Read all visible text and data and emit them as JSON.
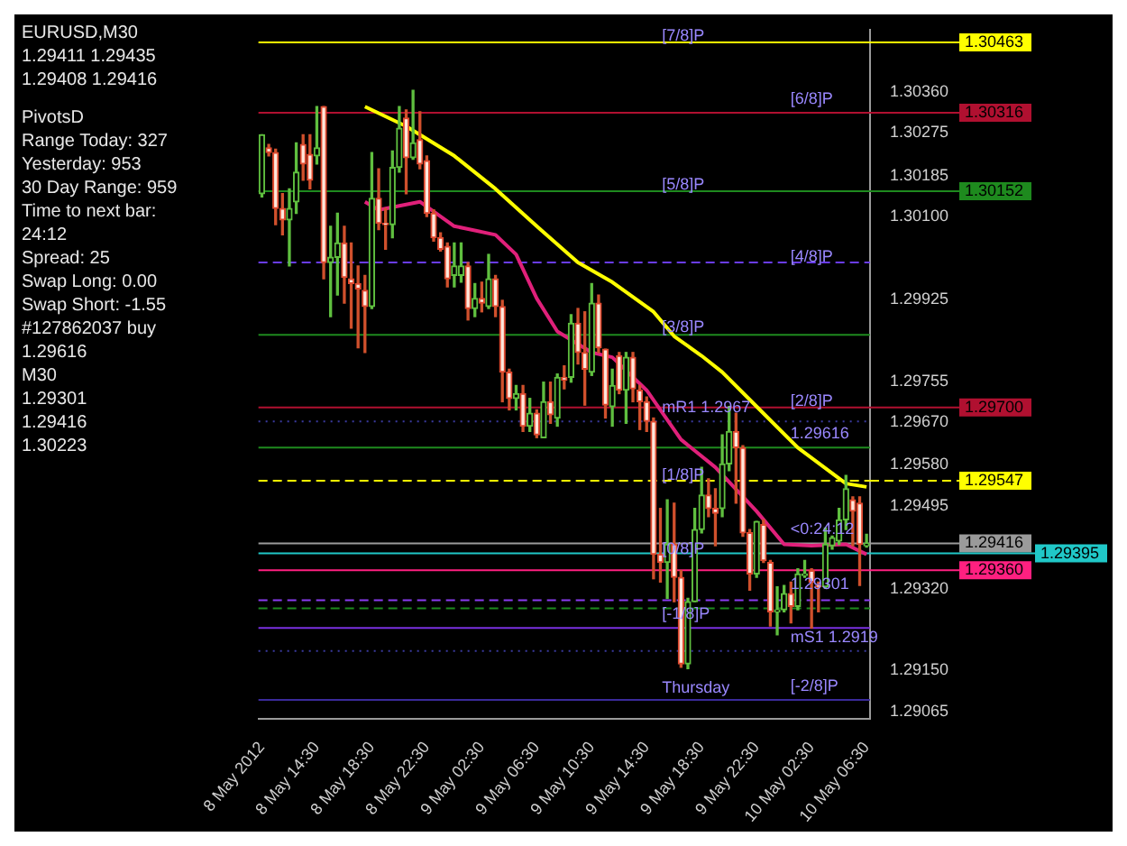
{
  "chart_data": {
    "type": "candlestick",
    "title": "EURUSD,M30  1.29411 1.29435 1.29408 1.29416",
    "categories": [
      "8 May 2012",
      null,
      null,
      null,
      null,
      null,
      null,
      null,
      "8 May 14:30",
      null,
      null,
      null,
      null,
      null,
      null,
      null,
      "8 May 18:30",
      null,
      null,
      null,
      null,
      null,
      null,
      null,
      "8 May 22:30",
      null,
      null,
      null,
      null,
      null,
      null,
      null,
      "9 May 02:30",
      null,
      null,
      null,
      null,
      null,
      null,
      null,
      "9 May 06:30",
      null,
      null,
      null,
      null,
      null,
      null,
      null,
      "9 May 10:30",
      null,
      null,
      null,
      null,
      null,
      null,
      null,
      "9 May 14:30",
      null,
      null,
      null,
      null,
      null,
      null,
      null,
      "9 May 18:30",
      null,
      null,
      null,
      null,
      null,
      null,
      null,
      "9 May 22:30",
      null,
      null,
      null,
      null,
      null,
      null,
      null,
      "10 May 02:30",
      null,
      null,
      null,
      null,
      null,
      null,
      null,
      "10 May 06:30"
    ],
    "ohlc": [
      [
        1.30147,
        1.3027,
        1.3014,
        1.3027
      ],
      [
        1.30243,
        1.3025,
        1.30226,
        1.30233
      ],
      [
        1.30233,
        1.3024,
        1.30082,
        1.30116
      ],
      [
        1.30116,
        1.30147,
        1.30061,
        1.30092
      ],
      [
        1.30092,
        1.30157,
        1.29996,
        1.30116
      ],
      [
        1.3013,
        1.30253,
        1.30106,
        1.30192
      ],
      [
        1.3025,
        1.3027,
        1.30175,
        1.30209
      ],
      [
        1.30229,
        1.3027,
        1.30157,
        1.30175
      ],
      [
        1.30226,
        1.30329,
        1.30209,
        1.30243
      ],
      [
        1.30329,
        1.30329,
        1.29969,
        1.30003
      ],
      [
        1.30003,
        1.30079,
        1.2989,
        1.30014
      ],
      [
        1.30014,
        1.30106,
        1.29935,
        1.30044
      ],
      [
        1.30044,
        1.30079,
        1.29918,
        1.29972
      ],
      [
        1.29969,
        1.30044,
        1.29866,
        1.29959
      ],
      [
        1.29959,
        1.29996,
        1.29825,
        1.29948
      ],
      [
        1.29945,
        1.29976,
        1.29815,
        1.29911
      ],
      [
        1.29911,
        1.30233,
        1.29907,
        1.30137
      ],
      [
        1.30137,
        1.30199,
        1.30072,
        1.30085
      ],
      [
        1.30085,
        1.30116,
        1.30031,
        1.30082
      ],
      [
        1.30082,
        1.30236,
        1.30055,
        1.30202
      ],
      [
        1.30202,
        1.30329,
        1.30192,
        1.30284
      ],
      [
        1.30305,
        1.30322,
        1.30147,
        1.30222
      ],
      [
        1.30222,
        1.30363,
        1.30219,
        1.30253
      ],
      [
        1.3026,
        1.30318,
        1.30199,
        1.30209
      ],
      [
        1.30216,
        1.30226,
        1.30099,
        1.30106
      ],
      [
        1.30106,
        1.30113,
        1.30048,
        1.30055
      ],
      [
        1.30055,
        1.30065,
        1.30027,
        1.30031
      ],
      [
        1.30037,
        1.30044,
        1.29952,
        1.29969
      ],
      [
        1.29976,
        1.30044,
        1.29952,
        1.29996
      ],
      [
        1.29976,
        1.30044,
        1.29962,
        1.29996
      ],
      [
        1.29996,
        1.30003,
        1.29883,
        1.29907
      ],
      [
        1.29907,
        1.29959,
        1.2989,
        1.29928
      ],
      [
        1.29928,
        1.29962,
        1.299,
        1.29918
      ],
      [
        1.29911,
        1.3002,
        1.29907,
        1.29969
      ],
      [
        1.29969,
        1.29976,
        1.2989,
        1.29911
      ],
      [
        1.29911,
        1.29924,
        1.29712,
        1.29774
      ],
      [
        1.29774,
        1.2978,
        1.29695,
        1.29719
      ],
      [
        1.29719,
        1.29746,
        1.29695,
        1.29729
      ],
      [
        1.29729,
        1.29746,
        1.2965,
        1.29661
      ],
      [
        1.29661,
        1.29719,
        1.2965,
        1.29688
      ],
      [
        1.29688,
        1.29695,
        1.29637,
        1.29643
      ],
      [
        1.29637,
        1.29753,
        1.29637,
        1.29712
      ],
      [
        1.29712,
        1.29753,
        1.29667,
        1.29685
      ],
      [
        1.29678,
        1.2977,
        1.29661,
        1.29763
      ],
      [
        1.29763,
        1.29787,
        1.29739,
        1.29757
      ],
      [
        1.29763,
        1.29894,
        1.29753,
        1.29876
      ],
      [
        1.29876,
        1.29907,
        1.29791,
        1.29815
      ],
      [
        1.29815,
        1.299,
        1.29705,
        1.2978
      ],
      [
        1.29774,
        1.29959,
        1.29767,
        1.29918
      ],
      [
        1.29918,
        1.29935,
        1.29815,
        1.29825
      ],
      [
        1.29822,
        1.29822,
        1.29678,
        1.29705
      ],
      [
        1.29702,
        1.2978,
        1.29661,
        1.29746
      ],
      [
        1.29808,
        1.29815,
        1.29729,
        1.29736
      ],
      [
        1.29736,
        1.29815,
        1.29667,
        1.29805
      ],
      [
        1.29805,
        1.29815,
        1.29712,
        1.29739
      ],
      [
        1.29736,
        1.29746,
        1.29654,
        1.29712
      ],
      [
        1.29712,
        1.29722,
        1.2965,
        1.29671
      ],
      [
        1.29671,
        1.29678,
        1.29342,
        1.29393
      ],
      [
        1.29393,
        1.29489,
        1.29335,
        1.29376
      ],
      [
        1.29376,
        1.29507,
        1.29301,
        1.29414
      ],
      [
        1.29414,
        1.295,
        1.29294,
        1.29345
      ],
      [
        1.29345,
        1.29359,
        1.29157,
        1.29164
      ],
      [
        1.29164,
        1.29301,
        1.29154,
        1.29294
      ],
      [
        1.29294,
        1.29489,
        1.29294,
        1.29445
      ],
      [
        1.29445,
        1.29575,
        1.29438,
        1.29517
      ],
      [
        1.29517,
        1.29551,
        1.29472,
        1.29489
      ],
      [
        1.29489,
        1.2953,
        1.29411,
        1.29479
      ],
      [
        1.29489,
        1.29643,
        1.29472,
        1.29582
      ],
      [
        1.29582,
        1.29702,
        1.29568,
        1.2965
      ],
      [
        1.2965,
        1.29688,
        1.295,
        1.29616
      ],
      [
        1.29616,
        1.2962,
        1.29431,
        1.29438
      ],
      [
        1.29438,
        1.29445,
        1.29318,
        1.29352
      ],
      [
        1.29352,
        1.29462,
        1.29345,
        1.29462
      ],
      [
        1.29455,
        1.29465,
        1.29376,
        1.2938
      ],
      [
        1.29376,
        1.2938,
        1.29243,
        1.29273
      ],
      [
        1.29273,
        1.29325,
        1.29225,
        1.29277
      ],
      [
        1.29277,
        1.29328,
        1.29273,
        1.29311
      ],
      [
        1.29311,
        1.29335,
        1.2925,
        1.29284
      ],
      [
        1.29284,
        1.29363,
        1.29277,
        1.29352
      ],
      [
        1.29349,
        1.2938,
        1.29345,
        1.29352
      ],
      [
        1.29359,
        1.29363,
        1.29239,
        1.29335
      ],
      [
        1.29328,
        1.29335,
        1.29273,
        1.29325
      ],
      [
        1.29325,
        1.29448,
        1.29322,
        1.29414
      ],
      [
        1.29411,
        1.29431,
        1.29404,
        1.29428
      ],
      [
        1.29421,
        1.29489,
        1.29414,
        1.29465
      ],
      [
        1.29465,
        1.29558,
        1.29445,
        1.2953
      ],
      [
        1.29507,
        1.29513,
        1.29411,
        1.29483
      ],
      [
        1.295,
        1.29513,
        1.29328,
        1.29414
      ],
      [
        1.29411,
        1.29435,
        1.29408,
        1.29416
      ]
    ],
    "series": [
      {
        "type": "line",
        "color": "#ffff00",
        "values": [
          null,
          null,
          null,
          null,
          null,
          null,
          null,
          null,
          null,
          null,
          null,
          null,
          null,
          null,
          null,
          1.30329,
          null,
          null,
          null,
          null,
          null,
          1.30288,
          null,
          null,
          null,
          null,
          null,
          null,
          1.30226,
          null,
          null,
          null,
          null,
          null,
          1.30157,
          null,
          null,
          null,
          null,
          null,
          1.30079,
          null,
          null,
          null,
          null,
          null,
          1.30003,
          null,
          null,
          null,
          null,
          1.29962,
          null,
          null,
          null,
          null,
          null,
          1.299,
          null,
          null,
          1.29849,
          null,
          null,
          null,
          1.29808,
          null,
          null,
          1.29774,
          null,
          null,
          null,
          null,
          1.29702,
          null,
          null,
          null,
          null,
          null,
          1.29616,
          null,
          null,
          null,
          null,
          null,
          null,
          1.29541,
          null,
          null,
          1.29534
        ]
      },
      {
        "type": "line",
        "color": "#e0207a",
        "values": [
          null,
          null,
          null,
          null,
          null,
          null,
          null,
          null,
          null,
          null,
          null,
          null,
          null,
          null,
          null,
          1.3013,
          null,
          1.30113,
          null,
          null,
          null,
          null,
          null,
          1.3013,
          null,
          null,
          null,
          null,
          1.30079,
          null,
          null,
          null,
          null,
          null,
          1.30061,
          null,
          null,
          1.3002,
          null,
          null,
          1.29928,
          null,
          null,
          1.29859,
          null,
          null,
          null,
          null,
          1.29815,
          null,
          null,
          1.29805,
          null,
          null,
          null,
          null,
          1.29736,
          null,
          null,
          null,
          null,
          1.29633,
          null,
          null,
          null,
          null,
          1.29575,
          null,
          null,
          null,
          null,
          null,
          1.29483,
          null,
          null,
          null,
          1.29414,
          null,
          null,
          null,
          1.29411,
          null,
          null,
          null,
          null,
          1.29414,
          null,
          null,
          1.29393
        ]
      }
    ],
    "ylim": [
      1.2905,
      1.3049
    ],
    "yticks": [
      1.29065,
      {
        "value": 1.2915,
        "label": "1.29150"
      },
      {
        "value": 1.2932,
        "label": "1.29320"
      },
      1.29495,
      {
        "value": 1.2958,
        "label": "1.29580"
      },
      {
        "value": 1.2967,
        "label": "1.29670"
      },
      1.29755,
      1.29925,
      {
        "value": 1.301,
        "label": "1.30100"
      },
      1.30185,
      1.30275,
      {
        "value": 1.3036,
        "label": "1.30360"
      }
    ],
    "ref_lines": [
      {
        "axis": "y",
        "value": 1.30463,
        "label": "1.30463",
        "color": "#ffff00",
        "line_style": "solid"
      },
      {
        "axis": "y",
        "value": 1.30316,
        "label": "1.30316",
        "color": "#b01030",
        "line_style": "solid"
      },
      {
        "axis": "y",
        "value": 1.30152,
        "label": "1.30152",
        "color": "#1e8a1e",
        "line_style": "solid"
      },
      {
        "axis": "y",
        "value": 1.30003,
        "color": "#6a3cf0",
        "line_style": "dashed"
      },
      {
        "axis": "y",
        "value": 1.29852,
        "color": "#1e8a1e",
        "line_style": "solid"
      },
      {
        "axis": "y",
        "value": 1.297,
        "label": "1.29700",
        "color": "#b01030",
        "line_style": "solid"
      },
      {
        "axis": "y",
        "value": 1.29547,
        "label": "1.29547",
        "color": "#ffff00",
        "line_style": "dashed"
      },
      {
        "axis": "y",
        "value": 1.29416,
        "label": "1.29416",
        "color": "#9a9a9a",
        "line_style": "solid"
      },
      {
        "axis": "y",
        "value": 1.29395,
        "label": "1.29395",
        "color": "#20c8c8",
        "line_style": "solid"
      },
      {
        "axis": "y",
        "value": 1.2936,
        "label": "1.29360",
        "color": "#ff2080",
        "line_style": "solid"
      },
      {
        "axis": "y",
        "value": 1.29297,
        "color": "#8a3cf0",
        "line_style": "dashed"
      },
      {
        "axis": "y",
        "value": 1.2928,
        "color": "#1e8a1e",
        "line_style": "dashed"
      },
      {
        "axis": "y",
        "value": 1.29239,
        "color": "#7a30e0",
        "line_style": "solid"
      },
      {
        "axis": "y",
        "value": 1.29089,
        "color": "#3a2a9a",
        "line_style": "solid"
      },
      {
        "axis": "y",
        "value": 1.29616,
        "color": "#1e8a1e",
        "line_style": "solid"
      },
      {
        "axis": "y",
        "value": 1.29191,
        "color": "#3a3aa0",
        "line_style": "dotted"
      },
      {
        "axis": "y",
        "value": 1.29671,
        "color": "#3a3aa0",
        "line_style": "dotted"
      }
    ],
    "annotations": [
      "PivotsD",
      "Range Today: 327",
      "Yesterday: 953",
      "30 Day Range: 959",
      "Time to next bar: 24:12",
      "Spread: 25",
      "Swap Long: 0.00",
      "Swap Short: -1.55",
      "#127862037 buy",
      "1.29616",
      "M30",
      "1.29301",
      "1.29416",
      "1.30223",
      {
        "text": "[7/8]P",
        "y": 1.30449
      },
      {
        "text": "[6/8]P",
        "y": 1.30316
      },
      {
        "text": "[5/8]P",
        "y": 1.30137
      },
      {
        "text": "[4/8]P",
        "y": 1.29986
      },
      {
        "text": "[3/8]P",
        "y": 1.29839
      },
      {
        "text": "[2/8]P",
        "y": 1.29685
      },
      {
        "text": "mR1 1.2967",
        "y": 1.29671
      },
      {
        "text": "1.29616",
        "y": 1.29616
      },
      {
        "text": "[1/8]P",
        "y": 1.2953
      },
      {
        "text": "<0:24:12",
        "y": 1.29416
      },
      {
        "text": "[0/8]P",
        "y": 1.29376
      },
      {
        "text": "1.29301",
        "y": 1.29301
      },
      {
        "text": "[-1/8]P",
        "y": 1.29239
      },
      {
        "text": "mS1 1.2919",
        "y": 1.29191
      },
      {
        "text": "Thursday",
        "y": 1.29085
      },
      {
        "text": "[-2/8]P",
        "y": 1.29089
      }
    ],
    "legend": false,
    "grid": false
  }
}
